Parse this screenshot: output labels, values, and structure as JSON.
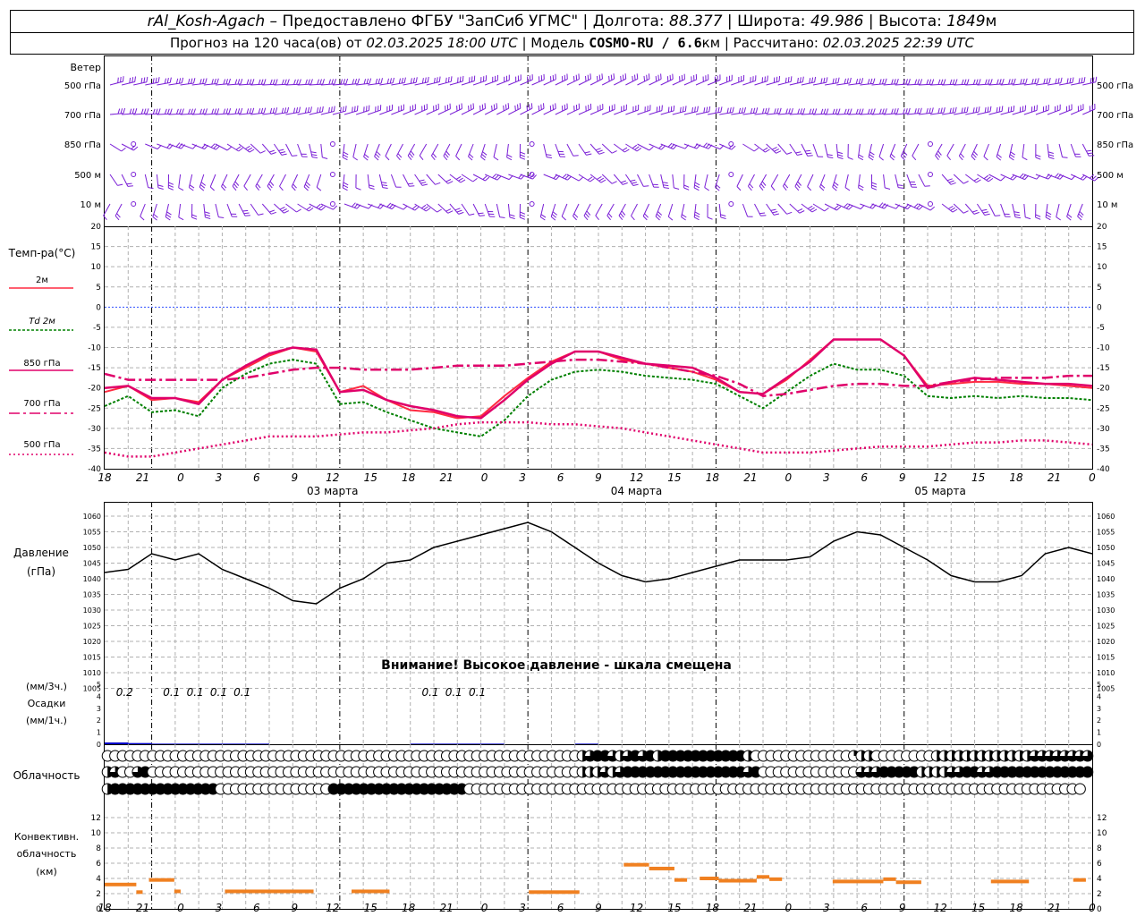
{
  "header": {
    "station": "rAl_Kosh-Agach",
    "provider": "Предоставлено ФГБУ \"ЗапСиб УГМС\"",
    "lon_label": "Долгота:",
    "lon": "88.377",
    "lat_label": "Широта:",
    "lat": "49.986",
    "alt_label": "Высота:",
    "alt": "1849",
    "alt_unit": "м",
    "forecast_label": "Прогноз на 120 часа(ов) от",
    "forecast_from": "02.03.2025 18:00 UTC",
    "model_label": "Модель",
    "model": "COSMO-RU / 6.6",
    "model_unit": "км",
    "calc_label": "Рассчитано:",
    "calc": "02.03.2025 22:39 UTC"
  },
  "wind_panel": {
    "title": "Ветер",
    "levels": [
      "500 гПа",
      "700 гПа",
      "850 гПа",
      "500 м",
      "10 м"
    ]
  },
  "temp_panel": {
    "title": "Темп-ра(°C)",
    "legend": [
      {
        "label": "2м",
        "color": "#ff0040",
        "style": "solid"
      },
      {
        "label": "Td 2м",
        "color": "#008000",
        "style": "dotted"
      },
      {
        "label": "850 гПа",
        "color": "#e0006a",
        "style": "solid"
      },
      {
        "label": "700 гПа",
        "color": "#e0006a",
        "style": "dashdot"
      },
      {
        "label": "500 гПа",
        "color": "#e0006a",
        "style": "dotted"
      }
    ],
    "ticks": [
      "20",
      "15",
      "10",
      "5",
      "0",
      "-5",
      "-10",
      "-15",
      "-20",
      "-25",
      "-30",
      "-35",
      "-40"
    ]
  },
  "time_axis": {
    "hour_labels": [
      "18",
      "21",
      "0",
      "3",
      "6",
      "9",
      "12",
      "15",
      "18",
      "21",
      "0",
      "3",
      "6",
      "9",
      "12",
      "15",
      "18",
      "21",
      "0",
      "3",
      "6",
      "9",
      "12",
      "15",
      "18",
      "21",
      "0"
    ],
    "dates": [
      "03 марта",
      "04 марта",
      "05 марта"
    ]
  },
  "pressure_panel": {
    "title": "Давление",
    "unit": "(гПа)",
    "ticks": [
      "1060",
      "1055",
      "1050",
      "1045",
      "1040",
      "1035",
      "1030",
      "1025",
      "1020",
      "1015",
      "1010",
      "1005"
    ],
    "warning": "Внимание! Высокое давление - шкала смещена"
  },
  "precip_panel": {
    "unit_top": "(мм/3ч.)",
    "title": "Осадки",
    "unit_bottom": "(мм/1ч.)",
    "ticks": [
      "5",
      "4",
      "3",
      "2",
      "1",
      "0"
    ],
    "labels": [
      {
        "hour": 3,
        "text": "0.2"
      },
      {
        "hour": 9,
        "text": "0.1"
      },
      {
        "hour": 12,
        "text": "0.1"
      },
      {
        "hour": 15,
        "text": "0.1"
      },
      {
        "hour": 18,
        "text": "0.1"
      },
      {
        "hour": 42,
        "text": "0.1"
      },
      {
        "hour": 45,
        "text": "0.1"
      },
      {
        "hour": 48,
        "text": "0.1"
      }
    ]
  },
  "cloud_panel": {
    "title": "Облачность"
  },
  "conv_panel": {
    "title_1": "Конвективн.",
    "title_2": "облачность",
    "unit": "(км)",
    "ticks": [
      "12",
      "10",
      "8",
      "6",
      "4",
      "2",
      "0"
    ]
  },
  "colors": {
    "wind": "#7a1fd6",
    "t2m": "#ff2a40",
    "td": "#008000",
    "levels": "#e0006a",
    "pressure": "#000000",
    "precip": "#0000cc",
    "conv": "#f08020",
    "zero_line": "#3050ff",
    "grid": "#b0b0b0"
  },
  "chart_data": [
    {
      "type": "line",
      "name": "temperature",
      "x_hours": [
        0,
        3,
        6,
        9,
        12,
        15,
        18,
        21,
        24,
        27,
        30,
        33,
        36,
        39,
        42,
        45,
        48,
        51,
        54,
        57,
        60,
        63,
        66,
        69,
        72,
        75,
        78,
        81,
        84,
        87,
        90,
        93,
        96,
        99,
        102,
        105,
        108,
        111,
        114,
        117,
        120,
        123,
        126
      ],
      "ylim": [
        -40,
        20
      ],
      "series": [
        {
          "name": "2м",
          "values": [
            -21,
            -19.5,
            -23,
            -22.5,
            -23.5,
            -18,
            -15,
            -12,
            -10,
            -11,
            -21,
            -19.5,
            -23,
            -25.5,
            -26,
            -27.5,
            -27,
            -22,
            -17.5,
            -13.5,
            -11,
            -11,
            -13,
            -14,
            -15,
            -16,
            -18,
            -21,
            -21.5,
            -18,
            -13,
            -8,
            -8,
            -8,
            -12,
            -19.5,
            -19,
            -18.5,
            -18.5,
            -19,
            -19,
            -19.5,
            -20
          ]
        },
        {
          "name": "Td 2м",
          "values": [
            -24.5,
            -22,
            -26,
            -25.5,
            -27,
            -20,
            -16.5,
            -14,
            -13,
            -14,
            -24,
            -23.5,
            -26,
            -28,
            -30,
            -31,
            -32,
            -28,
            -22,
            -18,
            -16,
            -15.5,
            -16,
            -17,
            -17.5,
            -18,
            -19,
            -22,
            -25,
            -21,
            -17,
            -14,
            -15.5,
            -15.5,
            -17,
            -22,
            -22.5,
            -22,
            -22.5,
            -22,
            -22.5,
            -22.5,
            -23
          ]
        },
        {
          "name": "850 гПа",
          "values": [
            -20,
            -19.5,
            -22.5,
            -22.5,
            -24,
            -18,
            -14.5,
            -11.5,
            -10,
            -10.5,
            -21,
            -20.5,
            -23,
            -24.5,
            -25.5,
            -27,
            -27.5,
            -23,
            -18,
            -14,
            -11,
            -11,
            -12.5,
            -14,
            -14.5,
            -15,
            -17.5,
            -21,
            -21.5,
            -17.5,
            -13.5,
            -8,
            -8,
            -8,
            -12,
            -20,
            -18.5,
            -17.5,
            -18,
            -18.5,
            -19,
            -19,
            -19.5
          ]
        },
        {
          "name": "700 гПа",
          "values": [
            -16.5,
            -18,
            -18,
            -18,
            -18,
            -18,
            -17.5,
            -16.5,
            -15.5,
            -15,
            -15,
            -15.5,
            -15.5,
            -15.5,
            -15,
            -14.5,
            -14.5,
            -14.5,
            -14,
            -13.5,
            -13,
            -13,
            -13.5,
            -14,
            -15,
            -16,
            -17,
            -19,
            -22,
            -21.5,
            -20.5,
            -19.5,
            -19,
            -19,
            -19.5,
            -19.5,
            -18.5,
            -18,
            -17.5,
            -17.5,
            -17.5,
            -17,
            -17
          ]
        },
        {
          "name": "500 гПа",
          "values": [
            -36,
            -37,
            -37,
            -36,
            -35,
            -34,
            -33,
            -32,
            -32,
            -32,
            -31.5,
            -31,
            -31,
            -30.5,
            -30,
            -29,
            -28.5,
            -28.5,
            -28.5,
            -29,
            -29,
            -29.5,
            -30,
            -31,
            -32,
            -33,
            -34,
            -35,
            -36,
            -36,
            -36,
            -35.5,
            -35,
            -34.5,
            -34.5,
            -34.5,
            -34,
            -33.5,
            -33.5,
            -33,
            -33,
            -33.5,
            -34
          ]
        }
      ]
    },
    {
      "type": "line",
      "name": "pressure",
      "x_hours": [
        0,
        3,
        6,
        9,
        12,
        15,
        18,
        21,
        24,
        27,
        30,
        33,
        36,
        39,
        42,
        45,
        48,
        51,
        54,
        57,
        60,
        63,
        66,
        69,
        72,
        75,
        78,
        81,
        84,
        87,
        90,
        93,
        96,
        99,
        102,
        105,
        108,
        111,
        114,
        117,
        120,
        123,
        126
      ],
      "ylim": [
        1005,
        1060
      ],
      "series": [
        {
          "name": "Давление",
          "values": [
            1042,
            1043,
            1048,
            1046,
            1048,
            1043,
            1040,
            1037,
            1033,
            1032,
            1037,
            1040,
            1045,
            1046,
            1050,
            1052,
            1054,
            1056,
            1058,
            1055,
            1050,
            1045,
            1041,
            1039,
            1040,
            1042,
            1044,
            1046,
            1046,
            1046,
            1047,
            1052,
            1055,
            1054,
            1050,
            1046,
            1041,
            1039,
            1039,
            1041,
            1048,
            1050,
            1048
          ]
        }
      ]
    },
    {
      "type": "bar",
      "name": "precipitation",
      "x_hours": [
        0,
        3,
        6,
        9,
        12,
        15,
        18,
        21,
        24,
        27,
        30,
        33,
        36,
        39,
        42,
        45,
        48,
        51,
        54,
        57,
        60
      ],
      "ylim": [
        0,
        5
      ],
      "series": [
        {
          "name": "мм/1ч",
          "values": [
            0.15,
            0.1,
            0.05,
            0.05,
            0.05,
            0.05,
            0.05,
            0,
            0,
            0,
            0,
            0,
            0,
            0.05,
            0.05,
            0.05,
            0.05,
            0,
            0,
            0,
            0.05
          ]
        }
      ]
    },
    {
      "type": "table",
      "name": "cloud_cover_octas",
      "levels": [
        "верхний",
        "средний",
        "нижний"
      ],
      "step_hours": 1,
      "rows": [
        [
          0,
          0,
          0,
          0,
          0,
          0,
          0,
          0,
          0,
          0,
          0,
          0,
          0,
          0,
          0,
          0,
          0,
          0,
          0,
          0,
          0,
          0,
          0,
          0,
          0,
          0,
          0,
          0,
          0,
          0,
          0,
          0,
          0,
          0,
          0,
          0,
          0,
          0,
          0,
          0,
          0,
          0,
          0,
          0,
          0,
          0,
          0,
          0,
          0,
          0,
          0,
          0,
          0,
          0,
          0,
          0,
          0,
          0,
          0,
          0,
          0,
          0,
          0,
          4,
          6,
          8,
          8,
          6,
          4,
          6,
          8,
          6,
          8,
          4,
          8,
          8,
          8,
          8,
          8,
          8,
          8,
          8,
          8,
          8,
          8,
          4,
          0,
          0,
          0,
          0,
          0,
          0,
          0,
          0,
          0,
          0,
          0,
          0,
          0,
          2,
          4,
          4,
          0,
          0,
          0,
          0,
          0,
          0,
          0,
          0,
          4,
          4,
          4,
          4,
          4,
          4,
          4,
          4,
          4,
          4,
          4,
          4,
          4,
          6,
          6,
          6,
          6,
          6,
          6,
          6,
          6,
          6,
          6,
          6,
          6,
          6,
          6
        ],
        [
          4,
          6,
          0,
          0,
          6,
          8,
          0,
          0,
          0,
          0,
          0,
          0,
          0,
          0,
          0,
          0,
          0,
          0,
          0,
          0,
          0,
          0,
          0,
          0,
          0,
          0,
          0,
          0,
          0,
          0,
          0,
          0,
          0,
          0,
          0,
          0,
          0,
          0,
          0,
          0,
          0,
          0,
          0,
          0,
          0,
          0,
          0,
          0,
          0,
          0,
          0,
          0,
          0,
          0,
          0,
          0,
          0,
          0,
          0,
          0,
          0,
          0,
          0,
          4,
          4,
          4,
          6,
          4,
          6,
          8,
          8,
          8,
          8,
          8,
          8,
          8,
          8,
          8,
          8,
          8,
          8,
          8,
          8,
          8,
          8,
          6,
          8,
          0,
          0,
          0,
          0,
          0,
          0,
          0,
          0,
          0,
          0,
          0,
          0,
          0,
          6,
          6,
          6,
          8,
          8,
          8,
          8,
          8,
          4,
          4,
          4,
          4,
          6,
          6,
          8,
          8,
          6,
          6,
          8,
          8,
          8,
          8,
          8,
          8,
          8,
          8,
          8,
          8,
          8,
          8,
          8,
          8,
          8
        ],
        [
          4,
          8,
          8,
          8,
          8,
          8,
          8,
          8,
          8,
          8,
          8,
          8,
          8,
          8,
          8,
          0,
          0,
          0,
          0,
          0,
          0,
          0,
          0,
          0,
          0,
          0,
          0,
          0,
          0,
          0,
          8,
          8,
          8,
          8,
          8,
          8,
          8,
          8,
          8,
          8,
          8,
          8,
          8,
          8,
          8,
          8,
          8,
          8,
          0,
          0,
          0,
          0,
          0,
          0,
          0,
          0,
          0,
          0,
          0,
          0,
          0,
          0,
          0,
          0,
          0,
          0,
          0,
          0,
          0,
          0,
          0,
          0,
          0,
          0,
          0,
          0,
          0,
          0,
          0,
          0,
          0,
          0,
          0,
          0,
          0,
          0,
          0,
          0,
          0,
          0,
          0,
          0,
          0,
          0,
          0,
          0,
          0,
          0,
          0,
          0,
          0,
          0,
          0,
          0,
          0,
          0,
          0,
          0,
          0,
          0,
          0,
          0,
          0,
          0,
          0,
          0,
          0,
          0,
          0,
          0,
          0,
          0,
          0,
          0,
          0,
          0,
          0,
          0,
          0,
          0
        ]
      ]
    },
    {
      "type": "bar",
      "name": "convective_cloud",
      "ylim": [
        0,
        13
      ],
      "segments": [
        {
          "from": 0,
          "to": 5,
          "value": 3.2
        },
        {
          "from": 5,
          "to": 6,
          "value": 2.2
        },
        {
          "from": 7,
          "to": 11,
          "value": 3.8
        },
        {
          "from": 11,
          "to": 12,
          "value": 2.3
        },
        {
          "from": 19,
          "to": 33,
          "value": 2.3
        },
        {
          "from": 39,
          "to": 45,
          "value": 2.3
        },
        {
          "from": 67,
          "to": 75,
          "value": 2.2
        },
        {
          "from": 82,
          "to": 86,
          "value": 5.8
        },
        {
          "from": 86,
          "to": 90,
          "value": 5.3
        },
        {
          "from": 90,
          "to": 92,
          "value": 3.8
        },
        {
          "from": 94,
          "to": 97,
          "value": 4.0
        },
        {
          "from": 97,
          "to": 103,
          "value": 3.7
        },
        {
          "from": 103,
          "to": 105,
          "value": 4.2
        },
        {
          "from": 105,
          "to": 107,
          "value": 3.9
        },
        {
          "from": 115,
          "to": 123,
          "value": 3.6
        },
        {
          "from": 123,
          "to": 125,
          "value": 3.9
        },
        {
          "from": 125,
          "to": 129,
          "value": 3.5
        },
        {
          "from": 140,
          "to": 146,
          "value": 3.6
        },
        {
          "from": 153,
          "to": 155,
          "value": 3.8
        }
      ]
    }
  ]
}
